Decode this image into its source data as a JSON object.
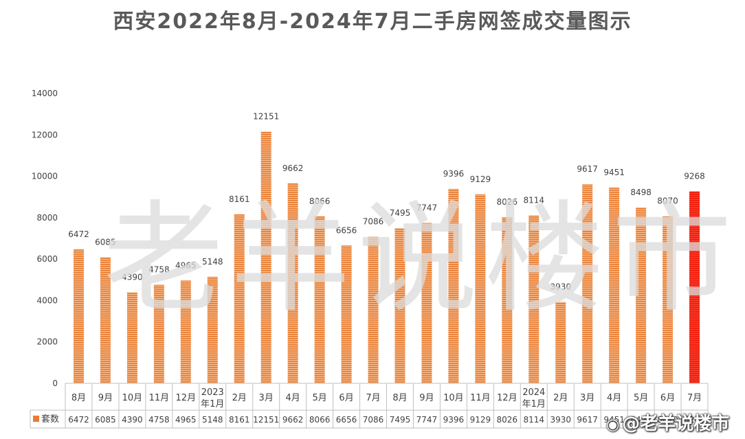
{
  "chart_data": {
    "type": "bar",
    "title": "西安2022年8月-2024年7月二手房网签成交量图示",
    "categories": [
      "8月",
      "9月",
      "10月",
      "11月",
      "12月",
      "2023年1月",
      "2月",
      "3月",
      "4月",
      "5月",
      "6月",
      "7月",
      "8月",
      "9月",
      "10月",
      "11月",
      "12月",
      "2024年1月",
      "2月",
      "3月",
      "4月",
      "5月",
      "6月",
      "7月"
    ],
    "category_lines": [
      [
        "8月"
      ],
      [
        "9月"
      ],
      [
        "10月"
      ],
      [
        "11月"
      ],
      [
        "12月"
      ],
      [
        "2023",
        "年1月"
      ],
      [
        "2月"
      ],
      [
        "3月"
      ],
      [
        "4月"
      ],
      [
        "5月"
      ],
      [
        "6月"
      ],
      [
        "7月"
      ],
      [
        "8月"
      ],
      [
        "9月"
      ],
      [
        "10月"
      ],
      [
        "11月"
      ],
      [
        "12月"
      ],
      [
        "2024",
        "年1月"
      ],
      [
        "2月"
      ],
      [
        "3月"
      ],
      [
        "4月"
      ],
      [
        "5月"
      ],
      [
        "6月"
      ],
      [
        "7月"
      ]
    ],
    "series": [
      {
        "name": "套数",
        "values": [
          6472,
          6085,
          4390,
          4758,
          4965,
          5148,
          8161,
          12151,
          9662,
          8066,
          6656,
          7086,
          7495,
          7747,
          9396,
          9129,
          8026,
          8114,
          3930,
          9617,
          9451,
          8498,
          8070,
          9268
        ]
      }
    ],
    "highlight_index": 23,
    "ylim": [
      0,
      14000
    ],
    "yticks": [
      0,
      2000,
      4000,
      6000,
      8000,
      10000,
      12000,
      14000
    ],
    "data_labels": true,
    "data_table": true,
    "grid": false,
    "legend": "data-table",
    "colors": {
      "bar": "#E87D32",
      "bar_stripe": "#F6C29A",
      "highlight": "#F21D0A",
      "highlight_stripe": "#F54535",
      "text": "#404040",
      "axis": "#BFBFBF"
    }
  },
  "watermark": "老羊说楼市",
  "weibo_mark": {
    "logo": "◉",
    "text": "@老羊说楼市"
  }
}
